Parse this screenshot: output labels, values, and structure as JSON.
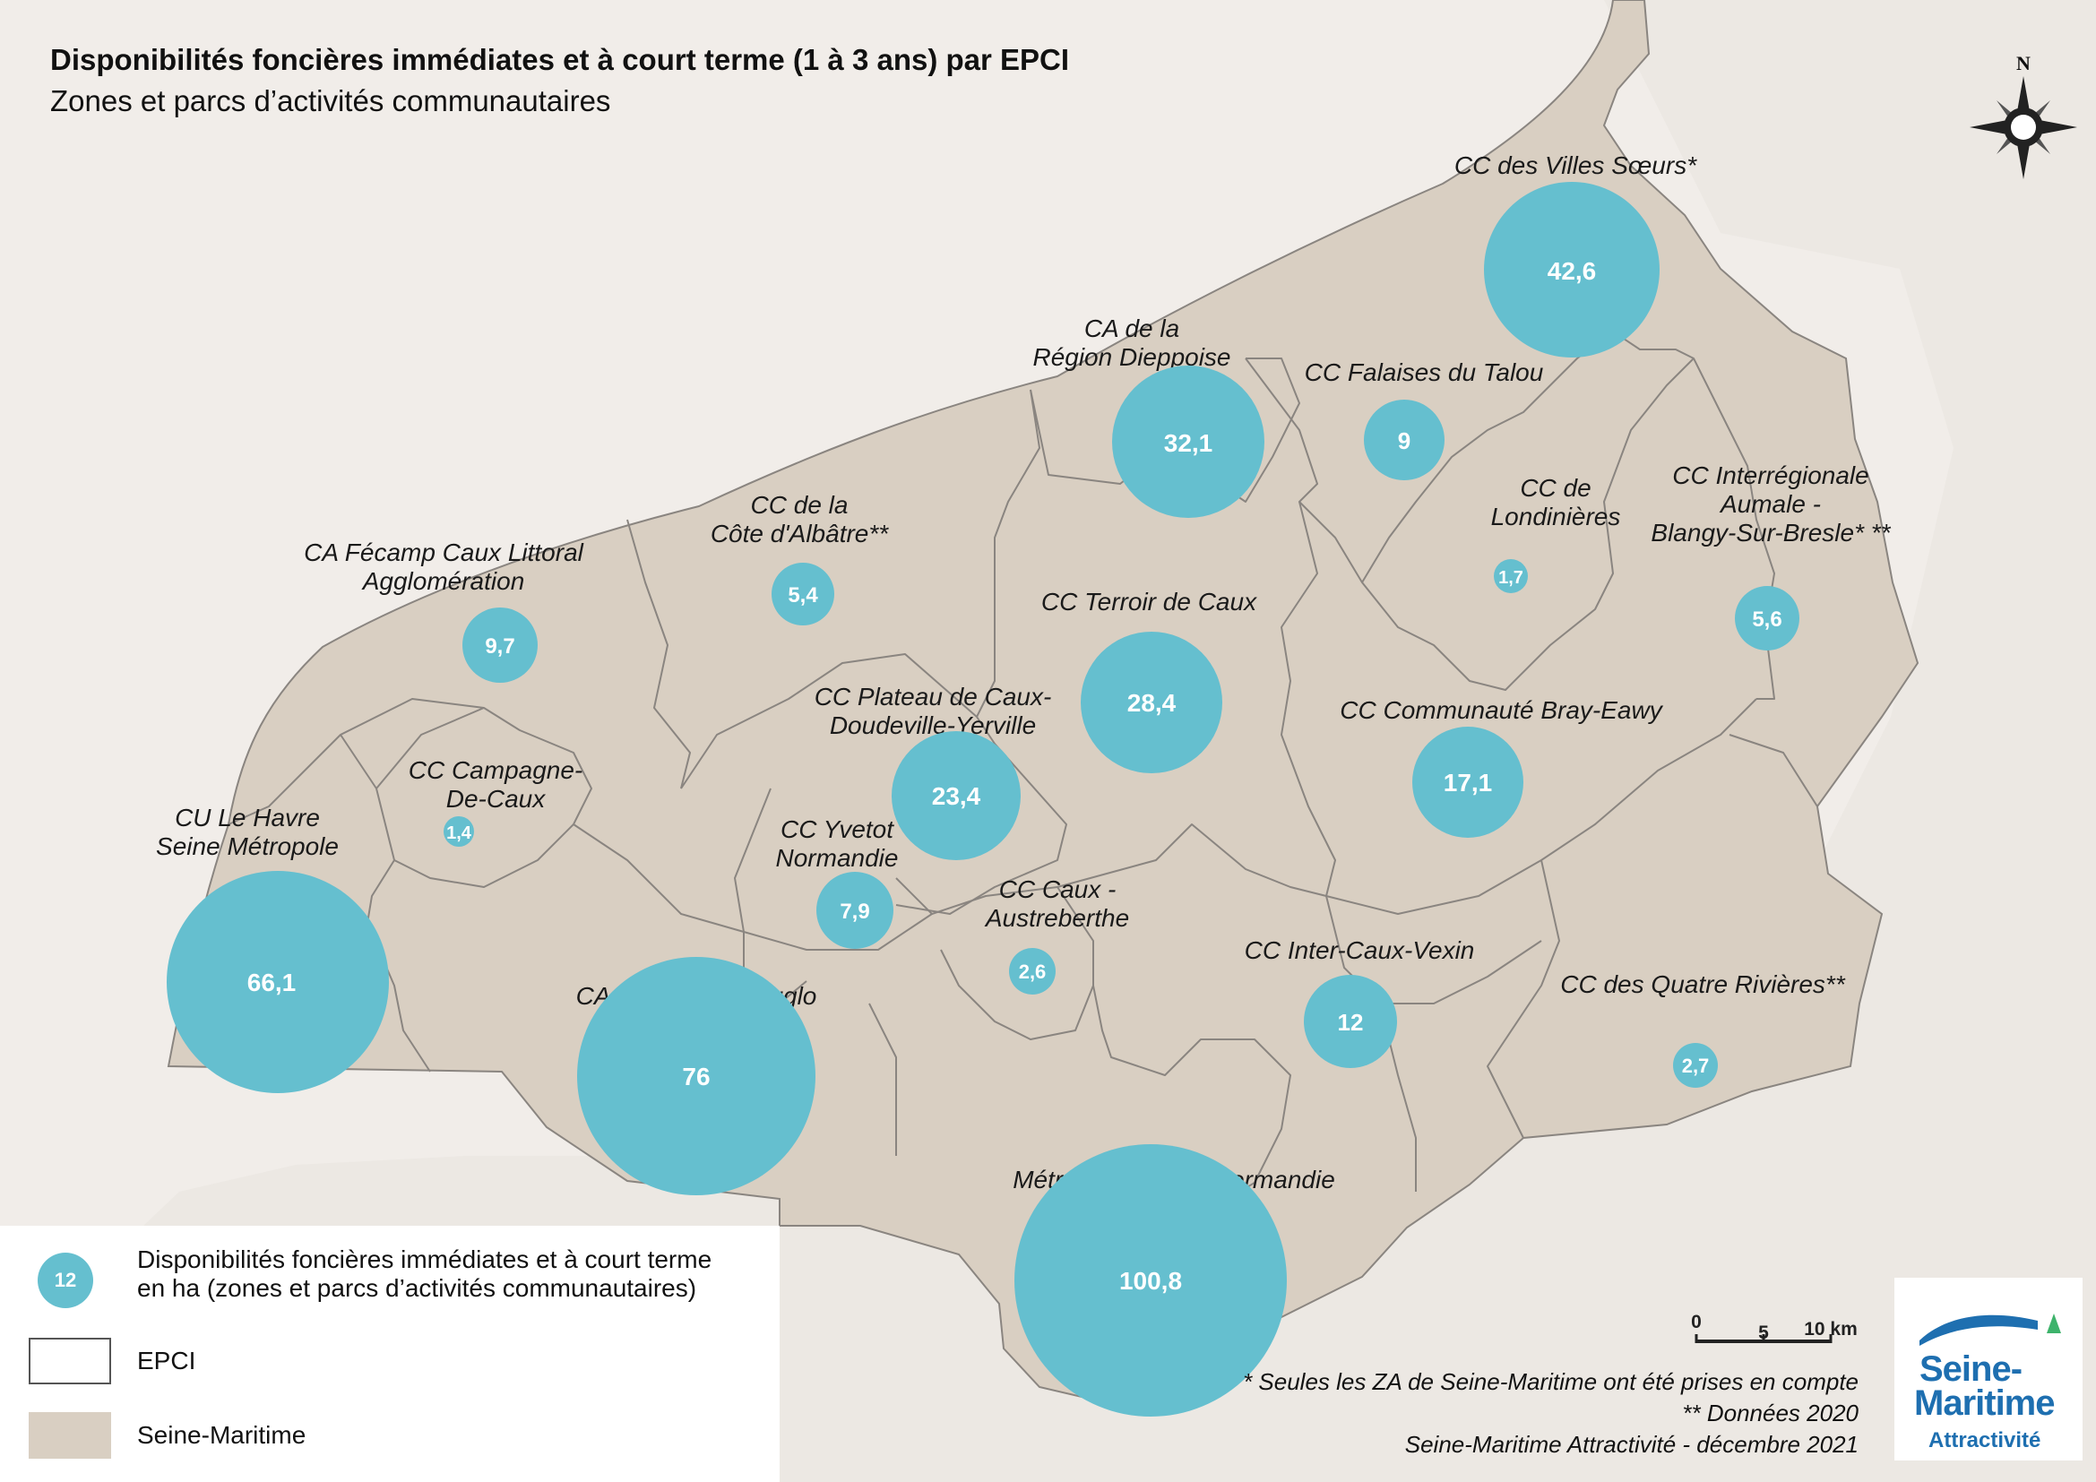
{
  "title": "Disponibilités foncières immédiates et à court terme (1 à 3 ans) par EPCI",
  "subtitle": "Zones et parcs d’activités communautaires",
  "compass": {
    "north_label": "N"
  },
  "scale_bar": {
    "ticks": [
      "0",
      "5",
      "10 km"
    ]
  },
  "colors": {
    "land": "#d9cfc2",
    "sea": "#f1ede9",
    "boundary": "#8a8580",
    "bubble": "#65bfcf",
    "logo_blue": "#1e6fb0",
    "logo_green": "#3db36b"
  },
  "epci": [
    {
      "id": "villes-soeurs",
      "label_lines": [
        "CC des Villes Sœurs*"
      ],
      "value": "42,6"
    },
    {
      "id": "dieppoise",
      "label_lines": [
        "CA de la",
        "Région Dieppoise"
      ],
      "value": "32,1"
    },
    {
      "id": "falaises-talou",
      "label_lines": [
        "CC Falaises du Talou"
      ],
      "value": "9"
    },
    {
      "id": "londinieres",
      "label_lines": [
        "CC de",
        "Londinières"
      ],
      "value": "1,7"
    },
    {
      "id": "aumale",
      "label_lines": [
        "CC Interrégionale",
        "Aumale -",
        "Blangy-Sur-Bresle* **"
      ],
      "value": "5,6"
    },
    {
      "id": "cote-albatre",
      "label_lines": [
        "CC de la",
        "Côte d'Albâtre**"
      ],
      "value": "5,4"
    },
    {
      "id": "fecamp",
      "label_lines": [
        "CA Fécamp Caux Littoral",
        "Agglomération"
      ],
      "value": "9,7"
    },
    {
      "id": "terroir-caux",
      "label_lines": [
        "CC Terroir de Caux"
      ],
      "value": "28,4"
    },
    {
      "id": "plateau-caux",
      "label_lines": [
        "CC Plateau de Caux-",
        "Doudeville-Yerville"
      ],
      "value": "23,4"
    },
    {
      "id": "bray-eawy",
      "label_lines": [
        "CC Communauté Bray-Eawy"
      ],
      "value": "17,1"
    },
    {
      "id": "campagne-caux",
      "label_lines": [
        "CC Campagne-",
        "De-Caux"
      ],
      "value": "1,4"
    },
    {
      "id": "le-havre",
      "label_lines": [
        "CU Le Havre",
        "Seine Métropole"
      ],
      "value": "66,1"
    },
    {
      "id": "yvetot",
      "label_lines": [
        "CC Yvetot",
        "Normandie"
      ],
      "value": "7,9"
    },
    {
      "id": "caux-austreberthe",
      "label_lines": [
        "CC Caux -",
        "Austreberthe"
      ],
      "value": "2,6"
    },
    {
      "id": "inter-caux-vexin",
      "label_lines": [
        "CC Inter-Caux-Vexin"
      ],
      "value": "12"
    },
    {
      "id": "quatre-rivieres",
      "label_lines": [
        "CC des Quatre Rivières**"
      ],
      "value": "2,7"
    },
    {
      "id": "caux-seine",
      "label_lines": [
        "CA Caux Seine Agglo"
      ],
      "value": "76"
    },
    {
      "id": "rouen",
      "label_lines": [
        "Métropole Rouen Normandie"
      ],
      "value": "100,8"
    }
  ],
  "legend": {
    "bubble_example_value": "12",
    "bubble_text_lines": [
      "Disponibilités foncières immédiates et à court terme",
      "en ha (zones et parcs d’activités communautaires)"
    ],
    "epci_label": "EPCI",
    "department_label": "Seine-Maritime"
  },
  "notes": {
    "note1": "* Seules les ZA de Seine-Maritime ont été prises en compte",
    "note2": "** Données 2020",
    "credit": "Seine-Maritime Attractivité - décembre 2021"
  },
  "logo": {
    "line1": "Seine-",
    "line2": "Maritime",
    "line3": "Attractivité"
  }
}
